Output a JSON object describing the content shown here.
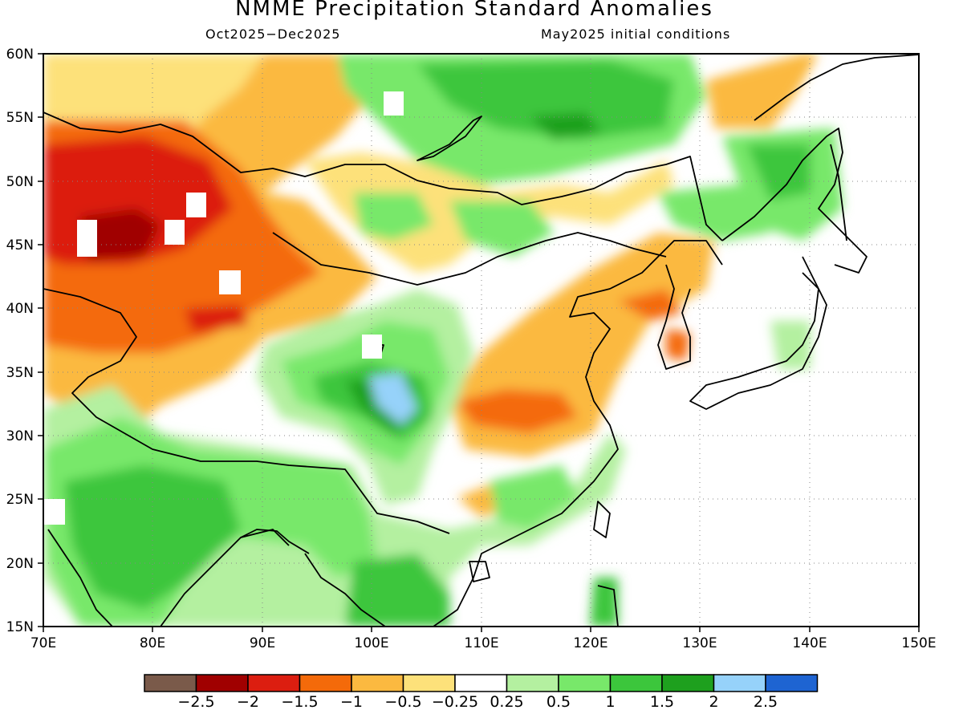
{
  "title": "NMME Precipitation Standard Anomalies",
  "period": "Oct2025−Dec2025",
  "initial_conditions": "May2025 initial conditions",
  "lat_labels": [
    "60N",
    "55N",
    "50N",
    "45N",
    "40N",
    "35N",
    "30N",
    "25N",
    "20N",
    "15N"
  ],
  "lon_labels": [
    "70E",
    "80E",
    "90E",
    "100E",
    "110E",
    "120E",
    "130E",
    "140E",
    "150E"
  ],
  "colorbar": {
    "colors": [
      "#7a5a4a",
      "#a00000",
      "#dc1e10",
      "#f46a0a",
      "#fbb940",
      "#fde17a",
      "#ffffff",
      "#b4f0a0",
      "#78e86a",
      "#3cc63c",
      "#1ea01e",
      "#96d2fa",
      "#1e64d2"
    ],
    "labels": [
      "−2.5",
      "−2",
      "−1.5",
      "−1",
      "−0.5",
      "−0.25",
      "0.25",
      "0.5",
      "1",
      "1.5",
      "2",
      "2.5"
    ]
  },
  "map": {
    "lon_range": [
      70,
      150
    ],
    "lat_range": [
      15,
      60
    ]
  }
}
